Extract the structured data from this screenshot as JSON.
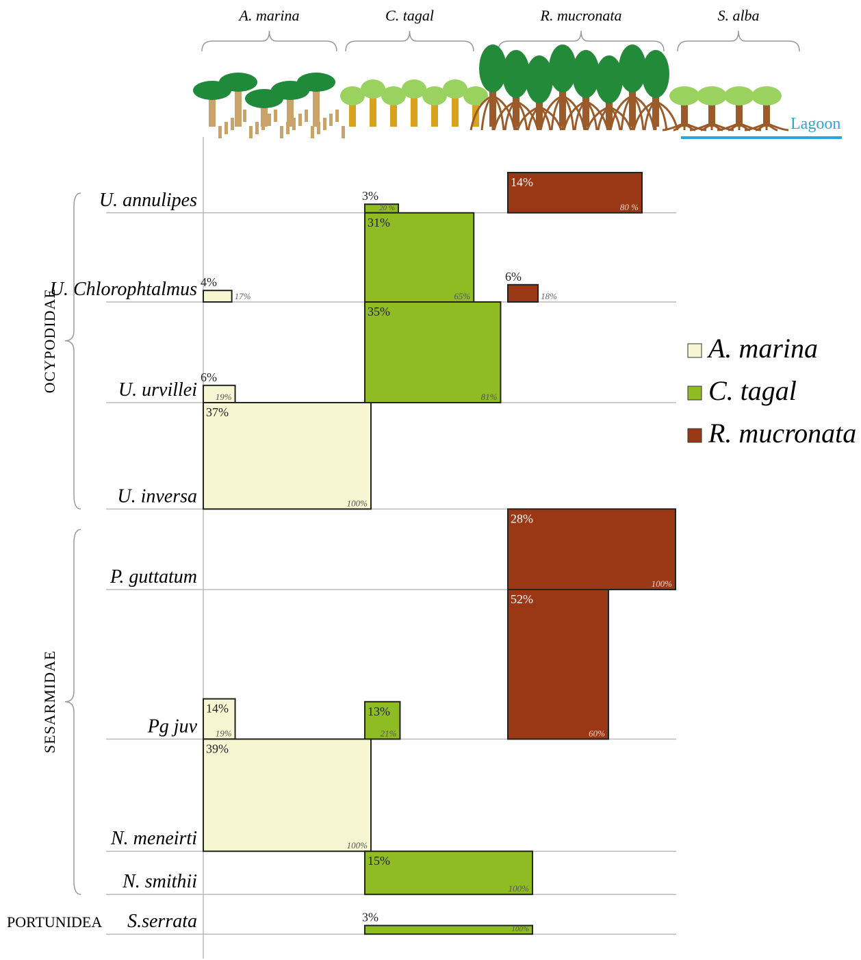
{
  "chart_data": {
    "type": "mosaic",
    "zones": [
      "A. marina",
      "C. tagal",
      "R. mucronata",
      "S. alba"
    ],
    "lagoon_label": "Lagoon",
    "series": [
      {
        "name": "A. marina",
        "color": "#f6f6d2"
      },
      {
        "name": "C. tagal",
        "color": "#8fbc22"
      },
      {
        "name": "R. mucronata",
        "color": "#9a3816"
      }
    ],
    "groups": [
      {
        "label": "OCYPODIDAE",
        "rows": [
          {
            "label": "U. annulipes",
            "cells": [
              {
                "series": 1,
                "values": [
                  3,
                  20
                ],
                "value_labels": [
                  "3%",
                  "20 %"
                ]
              },
              {
                "series": 2,
                "values": [
                  14,
                  80
                ],
                "value_labels": [
                  "14%",
                  "80 %"
                ]
              }
            ]
          },
          {
            "label": "U. Chlorophtalmus",
            "cells": [
              {
                "series": 0,
                "values": [
                  4,
                  17
                ],
                "value_labels": [
                  "4%",
                  "17%"
                ]
              },
              {
                "series": 1,
                "values": [
                  31,
                  65
                ],
                "value_labels": [
                  "31%",
                  "65%"
                ]
              },
              {
                "series": 2,
                "values": [
                  6,
                  18
                ],
                "value_labels": [
                  "6%",
                  "18%"
                ]
              }
            ]
          },
          {
            "label": "U. urvillei",
            "cells": [
              {
                "series": 0,
                "values": [
                  6,
                  19
                ],
                "value_labels": [
                  "6%",
                  "19%"
                ]
              },
              {
                "series": 1,
                "values": [
                  35,
                  81
                ],
                "value_labels": [
                  "35%",
                  "81%"
                ]
              }
            ]
          },
          {
            "label": "U. inversa",
            "cells": [
              {
                "series": 0,
                "values": [
                  37,
                  100
                ],
                "value_labels": [
                  "37%",
                  "100%"
                ]
              }
            ]
          }
        ]
      },
      {
        "label": "SESARMIDAE",
        "rows": [
          {
            "label": "P. guttatum",
            "cells": [
              {
                "series": 2,
                "values": [
                  28,
                  100
                ],
                "value_labels": [
                  "28%",
                  "100%"
                ]
              }
            ]
          },
          {
            "label": "Pg juv",
            "cells": [
              {
                "series": 0,
                "values": [
                  14,
                  19
                ],
                "value_labels": [
                  "14%",
                  "19%"
                ]
              },
              {
                "series": 1,
                "values": [
                  13,
                  21
                ],
                "value_labels": [
                  "13%",
                  "21%"
                ]
              },
              {
                "series": 2,
                "values": [
                  52,
                  60
                ],
                "value_labels": [
                  "52%",
                  "60%"
                ]
              }
            ]
          },
          {
            "label": "N. meneirti",
            "cells": [
              {
                "series": 0,
                "values": [
                  39,
                  100
                ],
                "value_labels": [
                  "39%",
                  "100%"
                ]
              }
            ]
          },
          {
            "label": "N. smithii",
            "cells": [
              {
                "series": 1,
                "values": [
                  15,
                  100
                ],
                "value_labels": [
                  "15%",
                  "100%"
                ]
              }
            ]
          }
        ]
      },
      {
        "label": "PORTUNIDEA",
        "rows": [
          {
            "label": "S.serrata",
            "cells": [
              {
                "series": 1,
                "values": [
                  3,
                  100
                ],
                "value_labels": [
                  "3%",
                  "100%"
                ]
              }
            ]
          }
        ]
      }
    ]
  }
}
